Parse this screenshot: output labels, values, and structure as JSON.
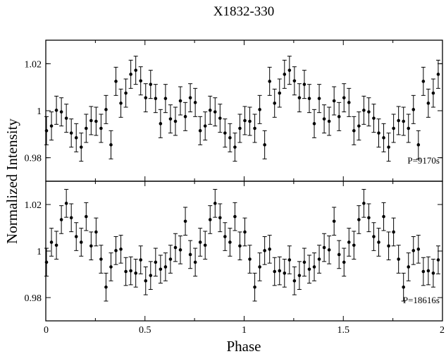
{
  "chart_data": [
    {
      "type": "scatter",
      "panel": "top",
      "title": "X1832-330",
      "xlabel": "Phase",
      "ylabel": "Normalized Intensity",
      "annotation": "P=9170s",
      "xlim": [
        0,
        2
      ],
      "ylim": [
        0.97,
        1.03
      ],
      "yticks": [
        0.98,
        1,
        1.02
      ],
      "ytick_labels": [
        "0.98",
        "1",
        "1.02"
      ],
      "error_bars": true,
      "x": [
        0.0,
        0.025,
        0.05,
        0.075,
        0.1,
        0.125,
        0.15,
        0.175,
        0.2,
        0.225,
        0.25,
        0.275,
        0.3,
        0.325,
        0.35,
        0.375,
        0.4,
        0.425,
        0.45,
        0.475,
        0.5,
        0.525,
        0.55,
        0.575,
        0.6,
        0.625,
        0.65,
        0.675,
        0.7,
        0.725,
        0.75,
        0.775,
        0.8,
        0.825,
        0.85,
        0.875,
        0.9,
        0.925,
        0.95,
        0.975,
        1.0,
        1.025,
        1.05,
        1.075,
        1.1,
        1.125,
        1.15,
        1.175,
        1.2,
        1.225,
        1.25,
        1.275,
        1.3,
        1.325,
        1.35,
        1.375,
        1.4,
        1.425,
        1.45,
        1.475,
        1.5,
        1.525,
        1.55,
        1.575,
        1.6,
        1.625,
        1.65,
        1.675,
        1.7,
        1.725,
        1.75,
        1.775,
        1.8,
        1.825,
        1.85,
        1.875,
        1.9,
        1.925,
        1.95,
        1.975
      ],
      "y": [
        0.9915,
        0.9935,
        1.0002,
        0.9995,
        0.9968,
        0.9905,
        0.9885,
        0.9845,
        0.9925,
        0.9958,
        0.9955,
        0.9925,
        1.0005,
        0.9855,
        1.0125,
        1.0032,
        1.0075,
        1.0155,
        1.0172,
        1.0127,
        1.0055,
        1.0112,
        1.0052,
        0.9945,
        1.0052,
        0.9965,
        0.9955,
        1.0042,
        0.9975,
        1.0055,
        1.0035,
        0.9915,
        0.9935,
        1.0002,
        0.9995,
        0.9968,
        0.9905,
        0.9885,
        0.9845,
        0.9925,
        0.9958,
        0.9955,
        0.9925,
        1.0005,
        0.9855,
        1.0125,
        1.0032,
        1.0075,
        1.0155,
        1.0172,
        1.0127,
        1.0055,
        1.0112,
        1.0052,
        0.9945,
        1.0052,
        0.9965,
        0.9955,
        1.0042,
        0.9975,
        1.0055,
        1.0035,
        0.9915,
        0.9935,
        1.0002,
        0.9995,
        0.9968,
        0.9905,
        0.9885,
        0.9845,
        0.9925,
        0.9958,
        0.9955,
        0.9925,
        1.0005,
        0.9855,
        1.0125,
        1.0032,
        1.0075,
        1.0155
      ],
      "yerr": 0.006
    },
    {
      "type": "scatter",
      "panel": "bottom",
      "xlabel": "Phase",
      "ylabel": "Normalized Intensity",
      "annotation": "P=18616s",
      "xlim": [
        0,
        2
      ],
      "ylim": [
        0.97,
        1.03
      ],
      "xticks": [
        0,
        0.5,
        1,
        1.5,
        2
      ],
      "xtick_labels": [
        "0",
        "0.5",
        "1",
        "1.5",
        "2"
      ],
      "yticks": [
        0.98,
        1,
        1.02
      ],
      "ytick_labels": [
        "0.98",
        "1",
        "1.02"
      ],
      "error_bars": true,
      "x": [
        0.0,
        0.025,
        0.05,
        0.075,
        0.1,
        0.125,
        0.15,
        0.175,
        0.2,
        0.225,
        0.25,
        0.275,
        0.3,
        0.325,
        0.35,
        0.375,
        0.4,
        0.425,
        0.45,
        0.475,
        0.5,
        0.525,
        0.55,
        0.575,
        0.6,
        0.625,
        0.65,
        0.675,
        0.7,
        0.725,
        0.75,
        0.775,
        0.8,
        0.825,
        0.85,
        0.875,
        0.9,
        0.925,
        0.95,
        0.975,
        1.0,
        1.025,
        1.05,
        1.075,
        1.1,
        1.125,
        1.15,
        1.175,
        1.2,
        1.225,
        1.25,
        1.275,
        1.3,
        1.325,
        1.35,
        1.375,
        1.4,
        1.425,
        1.45,
        1.475,
        1.5,
        1.525,
        1.55,
        1.575,
        1.6,
        1.625,
        1.65,
        1.675,
        1.7,
        1.725,
        1.75,
        1.775,
        1.8,
        1.825,
        1.85,
        1.875,
        1.9,
        1.925,
        1.95,
        1.975
      ],
      "y": [
        0.9952,
        1.0038,
        1.0025,
        1.0135,
        1.0205,
        1.0143,
        1.0062,
        1.0038,
        1.0148,
        1.0022,
        1.0082,
        0.9965,
        0.9845,
        0.9932,
        1.0002,
        1.0008,
        0.9912,
        0.9915,
        0.9905,
        0.9962,
        0.9872,
        0.9895,
        0.9952,
        0.9922,
        0.9932,
        0.9965,
        1.0015,
        1.0005,
        1.0128,
        0.9985,
        0.9952,
        1.0038,
        1.0025,
        1.0135,
        1.0205,
        1.0143,
        1.0062,
        1.0038,
        1.0148,
        1.0022,
        1.0082,
        0.9965,
        0.9845,
        0.9932,
        1.0002,
        1.0008,
        0.9912,
        0.9915,
        0.9905,
        0.9962,
        0.9872,
        0.9895,
        0.9952,
        0.9922,
        0.9932,
        0.9965,
        1.0015,
        1.0005,
        1.0128,
        0.9985,
        0.9952,
        1.0038,
        1.0025,
        1.0135,
        1.0205,
        1.0143,
        1.0062,
        1.0038,
        1.0148,
        1.0022,
        1.0082,
        0.9965,
        0.9845,
        0.9932,
        1.0002,
        1.0008,
        0.9912,
        0.9915,
        0.9905,
        0.9962
      ],
      "yerr": 0.006
    }
  ]
}
